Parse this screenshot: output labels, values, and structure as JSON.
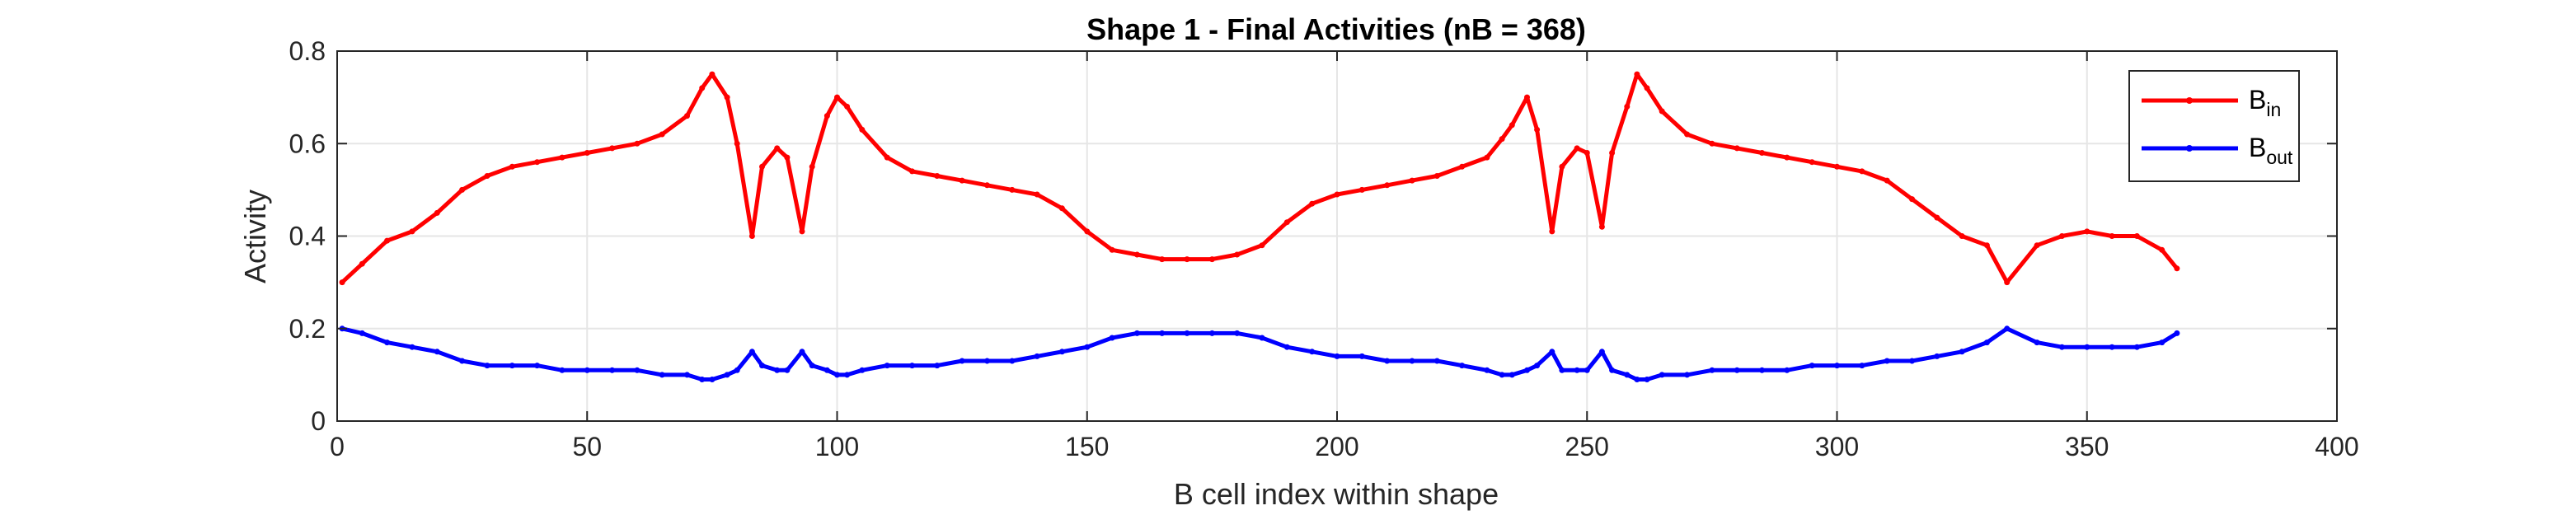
{
  "chart_data": {
    "type": "line",
    "title": "Shape 1 - Final Activities (nB = 368)",
    "xlabel": "B cell index within shape",
    "ylabel": "Activity",
    "xlim": [
      0,
      400
    ],
    "ylim": [
      0,
      0.8
    ],
    "xticks": [
      0,
      50,
      100,
      150,
      200,
      250,
      300,
      350,
      400
    ],
    "yticks": [
      0,
      0.2,
      0.4,
      0.6,
      0.8
    ],
    "xtick_labels": [
      "0",
      "50",
      "100",
      "150",
      "200",
      "250",
      "300",
      "350",
      "400"
    ],
    "ytick_labels": [
      "0",
      "0.2",
      "0.4",
      "0.6",
      "0.8"
    ],
    "grid": true,
    "legend_position": "top-right",
    "series": [
      {
        "name": "B",
        "subscript": "in",
        "color": "#ff0000",
        "x": [
          1,
          5,
          10,
          15,
          20,
          25,
          30,
          35,
          40,
          45,
          50,
          55,
          60,
          65,
          70,
          73,
          75,
          78,
          80,
          83,
          85,
          88,
          90,
          93,
          95,
          98,
          100,
          102,
          105,
          110,
          115,
          120,
          125,
          130,
          135,
          140,
          145,
          150,
          155,
          160,
          165,
          170,
          175,
          180,
          185,
          190,
          195,
          200,
          205,
          210,
          215,
          220,
          225,
          230,
          233,
          235,
          238,
          240,
          243,
          245,
          248,
          250,
          253,
          255,
          258,
          260,
          262,
          265,
          270,
          275,
          280,
          285,
          290,
          295,
          300,
          305,
          310,
          315,
          320,
          325,
          330,
          334,
          340,
          345,
          350,
          355,
          360,
          365,
          368
        ],
        "y": [
          0.3,
          0.34,
          0.39,
          0.41,
          0.45,
          0.5,
          0.53,
          0.55,
          0.56,
          0.57,
          0.58,
          0.59,
          0.6,
          0.62,
          0.66,
          0.72,
          0.75,
          0.7,
          0.6,
          0.4,
          0.55,
          0.59,
          0.57,
          0.41,
          0.55,
          0.66,
          0.7,
          0.68,
          0.63,
          0.57,
          0.54,
          0.53,
          0.52,
          0.51,
          0.5,
          0.49,
          0.46,
          0.41,
          0.37,
          0.36,
          0.35,
          0.35,
          0.35,
          0.36,
          0.38,
          0.43,
          0.47,
          0.49,
          0.5,
          0.51,
          0.52,
          0.53,
          0.55,
          0.57,
          0.61,
          0.64,
          0.7,
          0.63,
          0.41,
          0.55,
          0.59,
          0.58,
          0.42,
          0.58,
          0.68,
          0.75,
          0.72,
          0.67,
          0.62,
          0.6,
          0.59,
          0.58,
          0.57,
          0.56,
          0.55,
          0.54,
          0.52,
          0.48,
          0.44,
          0.4,
          0.38,
          0.3,
          0.38,
          0.4,
          0.41,
          0.4,
          0.4,
          0.37,
          0.33
        ]
      },
      {
        "name": "B",
        "subscript": "out",
        "color": "#0000ff",
        "x": [
          1,
          5,
          10,
          15,
          20,
          25,
          30,
          35,
          40,
          45,
          50,
          55,
          60,
          65,
          70,
          73,
          75,
          78,
          80,
          83,
          85,
          88,
          90,
          93,
          95,
          98,
          100,
          102,
          105,
          110,
          115,
          120,
          125,
          130,
          135,
          140,
          145,
          150,
          155,
          160,
          165,
          170,
          175,
          180,
          185,
          190,
          195,
          200,
          205,
          210,
          215,
          220,
          225,
          230,
          233,
          235,
          238,
          240,
          243,
          245,
          248,
          250,
          253,
          255,
          258,
          260,
          262,
          265,
          270,
          275,
          280,
          285,
          290,
          295,
          300,
          305,
          310,
          315,
          320,
          325,
          330,
          334,
          340,
          345,
          350,
          355,
          360,
          365,
          368
        ],
        "y": [
          0.2,
          0.19,
          0.17,
          0.16,
          0.15,
          0.13,
          0.12,
          0.12,
          0.12,
          0.11,
          0.11,
          0.11,
          0.11,
          0.1,
          0.1,
          0.09,
          0.09,
          0.1,
          0.11,
          0.15,
          0.12,
          0.11,
          0.11,
          0.15,
          0.12,
          0.11,
          0.1,
          0.1,
          0.11,
          0.12,
          0.12,
          0.12,
          0.13,
          0.13,
          0.13,
          0.14,
          0.15,
          0.16,
          0.18,
          0.19,
          0.19,
          0.19,
          0.19,
          0.19,
          0.18,
          0.16,
          0.15,
          0.14,
          0.14,
          0.13,
          0.13,
          0.13,
          0.12,
          0.11,
          0.1,
          0.1,
          0.11,
          0.12,
          0.15,
          0.11,
          0.11,
          0.11,
          0.15,
          0.11,
          0.1,
          0.09,
          0.09,
          0.1,
          0.1,
          0.11,
          0.11,
          0.11,
          0.11,
          0.12,
          0.12,
          0.12,
          0.13,
          0.13,
          0.14,
          0.15,
          0.17,
          0.2,
          0.17,
          0.16,
          0.16,
          0.16,
          0.16,
          0.17,
          0.19
        ]
      }
    ]
  }
}
